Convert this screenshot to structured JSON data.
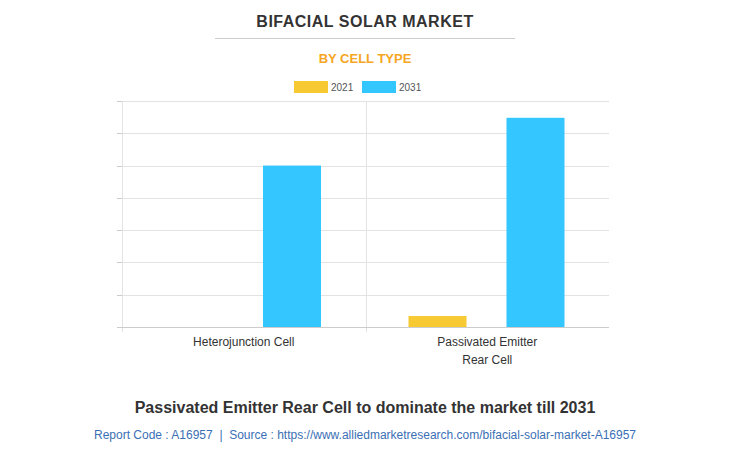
{
  "chart_data": {
    "type": "bar",
    "title": "BIFACIAL SOLAR MARKET",
    "subtitle": "BY CELL TYPE",
    "categories": [
      "Heterojunction Cell",
      "Passivated Emitter Rear Cell"
    ],
    "series": [
      {
        "name": "2021",
        "color": "#f7c933",
        "values": [
          0,
          0.34
        ]
      },
      {
        "name": "2031",
        "color": "#33c6ff",
        "values": [
          5.0,
          6.48
        ]
      }
    ],
    "ylim": [
      0,
      7
    ],
    "yticks": [
      0,
      1,
      2,
      3,
      4,
      5,
      6,
      7
    ],
    "grid": true,
    "tick_labels": "x",
    "legend": "top",
    "caption": "Passivated Emitter Rear Cell to dominate the market till 2031",
    "source": "Report Code : A16957  |  Source : https://www.alliedmarketresearch.com/bifacial-solar-market-A16957"
  }
}
